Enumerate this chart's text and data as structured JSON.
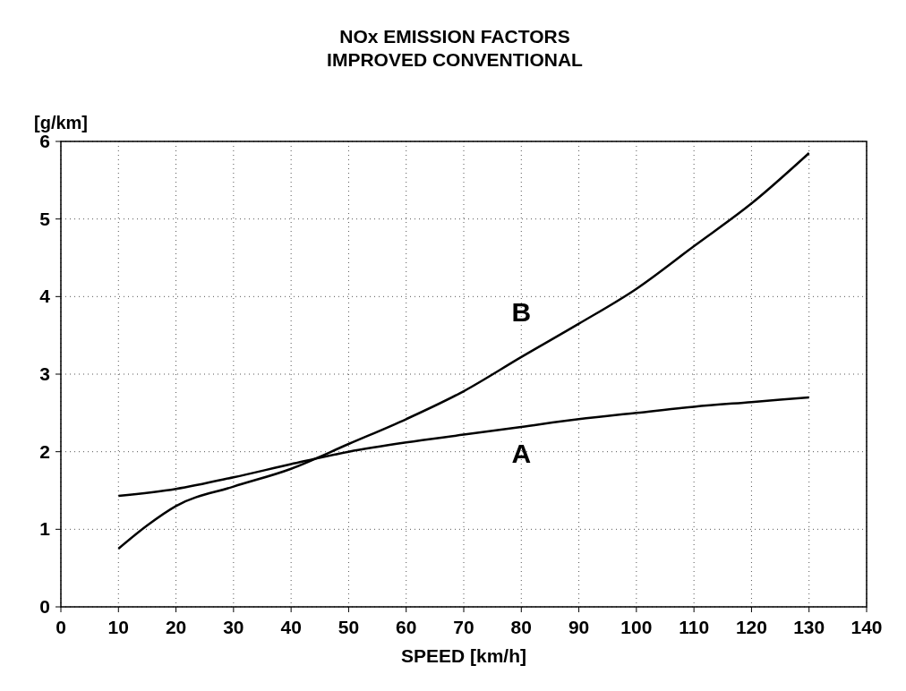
{
  "chart_data": {
    "type": "line",
    "title": "NOx EMISSION FACTORS\nIMPROVED CONVENTIONAL",
    "xlabel": "SPEED [km/h]",
    "ylabel": "[g/km]",
    "xlim": [
      0,
      140
    ],
    "xticks": [
      0,
      10,
      20,
      30,
      40,
      50,
      60,
      70,
      80,
      90,
      100,
      110,
      120,
      130,
      140
    ],
    "ylim": [
      0,
      6
    ],
    "yticks": [
      0,
      1,
      2,
      3,
      4,
      5,
      6
    ],
    "grid": true,
    "marker": "none",
    "line_style": "solid",
    "series": [
      {
        "name": "A",
        "color": "#000000",
        "x": [
          10,
          20,
          30,
          40,
          50,
          60,
          70,
          80,
          90,
          100,
          110,
          120,
          130
        ],
        "values": [
          1.43,
          1.52,
          1.67,
          1.84,
          2.0,
          2.12,
          2.22,
          2.32,
          2.42,
          2.5,
          2.58,
          2.64,
          2.7
        ]
      },
      {
        "name": "B",
        "color": "#000000",
        "x": [
          10,
          15,
          20,
          30,
          40,
          50,
          60,
          70,
          80,
          90,
          100,
          110,
          120,
          130
        ],
        "values": [
          0.75,
          1.05,
          1.3,
          1.55,
          1.78,
          2.1,
          2.42,
          2.78,
          3.22,
          3.65,
          4.1,
          4.65,
          5.2,
          5.85
        ]
      }
    ]
  }
}
